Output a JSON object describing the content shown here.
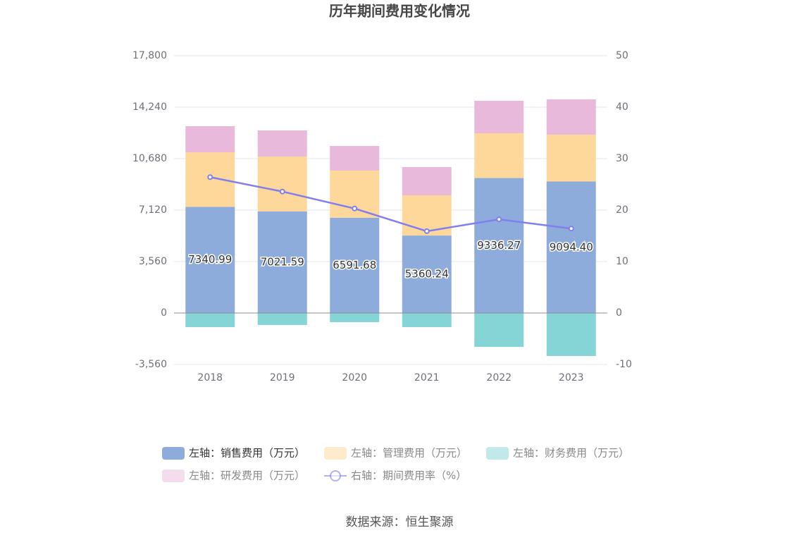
{
  "chart_data": {
    "type": "bar",
    "stacked": true,
    "title": "历年期间费用变化情况",
    "source": "数据来源：恒生聚源",
    "categories": [
      "2018",
      "2019",
      "2020",
      "2021",
      "2022",
      "2023"
    ],
    "series": [
      {
        "name": "左轴：销售费用（万元）",
        "color": "#8eacdb",
        "values": [
          7340.99,
          7021.59,
          6591.68,
          5360.24,
          9336.27,
          9094.4
        ],
        "value_labels": [
          "7340.99",
          "7021.59",
          "6591.68",
          "5360.24",
          "9336.27",
          "9094.40"
        ]
      },
      {
        "name": "左轴：管理费用（万元）",
        "color": "#fed89b",
        "values": [
          3778,
          3805,
          3260,
          2785,
          3100,
          3245
        ]
      },
      {
        "name": "左轴：财务费用（万元）",
        "color": "#85d4d6",
        "values": [
          -975,
          -829,
          -634,
          -975,
          -2341,
          -2975
        ]
      },
      {
        "name": "左轴：研发费用（万元）",
        "color": "#e8b9da",
        "values": [
          1805,
          1804,
          1706,
          1950,
          2244,
          2439
        ]
      },
      {
        "name": "右轴：期间费用率（%）",
        "type": "line",
        "axis": "y2",
        "color": "#7f7fef",
        "values": [
          26.4,
          23.6,
          20.3,
          15.9,
          18.2,
          16.4
        ]
      }
    ],
    "ylim": [
      -3560,
      17800
    ],
    "yticks": [
      {
        "value": -3560,
        "label": "-3,560"
      },
      0,
      {
        "value": 3560,
        "label": "3,560"
      },
      {
        "value": 7120,
        "label": "7,120"
      },
      {
        "value": 10680,
        "label": "10,680"
      },
      {
        "value": 14240,
        "label": "14,240"
      },
      {
        "value": 17800,
        "label": "17,800"
      }
    ],
    "y2lim": [
      -10,
      50
    ],
    "y2ticks": [
      -10,
      0,
      10,
      20,
      30,
      40,
      50
    ],
    "grid": true
  }
}
